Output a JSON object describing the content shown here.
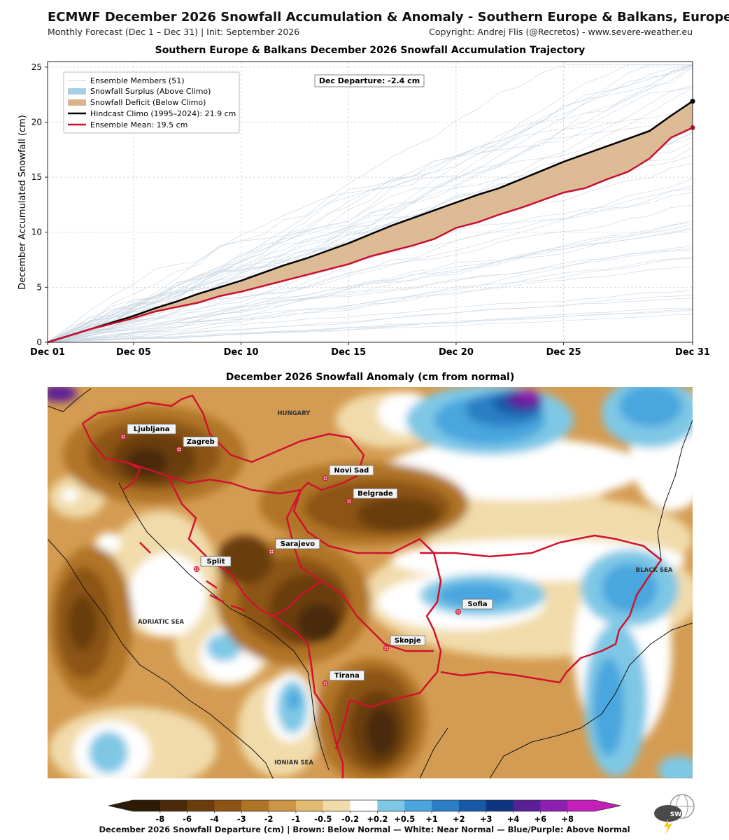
{
  "header": {
    "title": "ECMWF December 2026 Snowfall Accumulation & Anomaly - Southern Europe & Balkans, Europe",
    "subtitle_left": "Monthly Forecast (Dec 1 – Dec 31) | Init: September 2026",
    "subtitle_right": "Copyright: Andrej Flis (@Recretos) - www.severe-weather.eu"
  },
  "chart_data": [
    {
      "type": "line",
      "title": "Southern Europe & Balkans December 2026 Snowfall Accumulation Trajectory",
      "ylabel": "December Accumulated Snowfall (cm)",
      "xlabel": "",
      "x_ticks": [
        "Dec 01",
        "Dec 05",
        "Dec 10",
        "Dec 15",
        "Dec 20",
        "Dec 25",
        "Dec 31"
      ],
      "x_tick_days": [
        1,
        5,
        10,
        15,
        20,
        25,
        31
      ],
      "xlim": [
        1,
        31
      ],
      "y_ticks": [
        0,
        5,
        10,
        15,
        20,
        25
      ],
      "ylim": [
        0,
        25.5
      ],
      "grid": true,
      "legend_position": "top-left",
      "legend": [
        "Ensemble Members (51)",
        "Snowfall Surplus (Above Climo)",
        "Snowfall Deficit (Below Climo)",
        "Hindcast Climo (1995–2024): 21.9 cm",
        "Ensemble Mean: 19.5 cm"
      ],
      "annotation": "Dec Departure: -2.4 cm",
      "colors": {
        "climo": "#000000",
        "mean": "#c8102e",
        "deficit": "#d9b48a",
        "surplus": "#a9cfe4",
        "members": "#c5d3e0"
      },
      "series": [
        {
          "name": "Hindcast Climo (1995–2024): 21.9 cm",
          "x": [
            1,
            2,
            3,
            4,
            5,
            6,
            7,
            8,
            9,
            10,
            11,
            12,
            13,
            14,
            15,
            16,
            17,
            18,
            19,
            20,
            21,
            22,
            23,
            24,
            25,
            26,
            27,
            28,
            29,
            30,
            31
          ],
          "values": [
            0,
            0.6,
            1.2,
            1.8,
            2.4,
            3.1,
            3.7,
            4.4,
            5.0,
            5.6,
            6.3,
            7.0,
            7.6,
            8.3,
            9.0,
            9.8,
            10.6,
            11.3,
            12.0,
            12.7,
            13.4,
            14.0,
            14.8,
            15.6,
            16.4,
            17.1,
            17.8,
            18.5,
            19.2,
            20.6,
            21.9
          ]
        },
        {
          "name": "Ensemble Mean: 19.5 cm",
          "x": [
            1,
            2,
            3,
            4,
            5,
            6,
            7,
            8,
            9,
            10,
            11,
            12,
            13,
            14,
            15,
            16,
            17,
            18,
            19,
            20,
            21,
            22,
            23,
            24,
            25,
            26,
            27,
            28,
            29,
            30,
            31
          ],
          "values": [
            0,
            0.6,
            1.2,
            1.7,
            2.2,
            2.8,
            3.2,
            3.6,
            4.2,
            4.6,
            5.1,
            5.6,
            6.1,
            6.6,
            7.1,
            7.8,
            8.3,
            8.8,
            9.4,
            10.4,
            10.9,
            11.6,
            12.2,
            12.9,
            13.6,
            14.0,
            14.8,
            15.5,
            16.7,
            18.6,
            19.5
          ]
        }
      ]
    },
    {
      "type": "heatmap",
      "title": "December 2026 Snowfall Anomaly (cm from normal)",
      "colorbar_labels": [
        "-8",
        "-6",
        "-4",
        "-3",
        "-2",
        "-1",
        "-0.5",
        "-0.2",
        "+0.2",
        "+0.5",
        "+1",
        "+2",
        "+3",
        "+4",
        "+6",
        "+8"
      ],
      "colorbar_colors": [
        "#2e1a05",
        "#4a2a08",
        "#6b3d0c",
        "#8c5414",
        "#b07425",
        "#cc9745",
        "#e2bb73",
        "#f1dbaa",
        "#ffffff",
        "#7ec8e6",
        "#4aa6de",
        "#2a7fc4",
        "#1659a8",
        "#0e3380",
        "#5a1f96",
        "#8f1fb0",
        "#c41fb8"
      ],
      "colorbar_caption": "December 2026 Snowfall Departure (cm)  |  Brown: Below Normal  —  White: Near Normal  —  Blue/Purple: Above Normal",
      "region_labels": [
        "HUNGARY",
        "ADRIATIC SEA",
        "BLACK SEA",
        "IONIAN SEA"
      ],
      "cities": [
        "Ljubljana",
        "Zagreb",
        "Novi Sad",
        "Belgrade",
        "Sarajevo",
        "Split",
        "Sofia",
        "Skopje",
        "Tirana"
      ]
    }
  ],
  "logo": {
    "text": "SWE"
  }
}
